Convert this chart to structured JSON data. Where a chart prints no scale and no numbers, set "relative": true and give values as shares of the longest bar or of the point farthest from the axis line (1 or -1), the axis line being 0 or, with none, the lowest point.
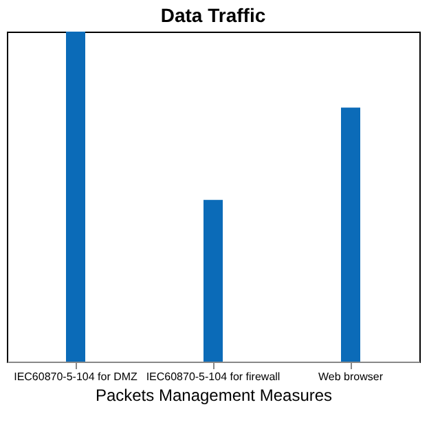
{
  "chart_data": {
    "type": "bar",
    "title": "Data Traffic",
    "xlabel": "Packets Management Measures",
    "categories": [
      "IEC60870-5-104 for DMZ",
      "IEC60870-5-104 for firewall",
      "Web browser"
    ],
    "values": [
      1,
      0.49,
      0.77
    ],
    "color": "#0b6bb8",
    "relative": true,
    "grid": false
  }
}
